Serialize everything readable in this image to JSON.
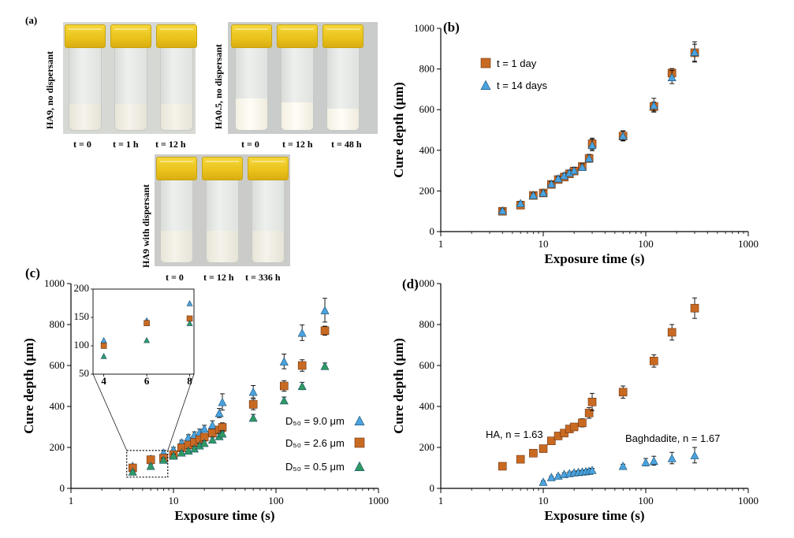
{
  "panel_a": {
    "label": "(a)",
    "groups": [
      {
        "name": "HA9, no dispersant",
        "captions": [
          "t = 0",
          "t = 1 h",
          "t = 12 h"
        ],
        "fill_levels": [
          0.32,
          0.32,
          0.32
        ]
      },
      {
        "name": "HA0.5, no dispersant",
        "captions": [
          "t = 0",
          "t = 12 h",
          "t = 48 h"
        ],
        "fill_levels": [
          0.38,
          0.34,
          0.26
        ]
      },
      {
        "name": "HA9 with dispersant",
        "captions": [
          "t = 0",
          "t = 12 h",
          "t = 336 h"
        ],
        "fill_levels": [
          0.38,
          0.38,
          0.38
        ]
      }
    ]
  },
  "colors": {
    "square": "#c96a23",
    "triangle_blue": "#4aa3df",
    "triangle_green": "#2e9a63"
  },
  "chart_data": [
    {
      "panel": "(b)",
      "type": "scatter",
      "xlabel": "Exposure time (s)",
      "ylabel": "Cure depth (μm)",
      "xscale": "log",
      "xlim": [
        1,
        1000
      ],
      "ylim": [
        0,
        1000
      ],
      "xticks": [
        "1",
        "10",
        "100",
        "1000"
      ],
      "yticks": [
        "0",
        "200",
        "400",
        "600",
        "800",
        "1000"
      ],
      "legend_position": "top-left",
      "series": [
        {
          "name": "t = 1 day",
          "marker": "square",
          "x": [
            4,
            6,
            8,
            10,
            12,
            14,
            16,
            18,
            20,
            24,
            28,
            30,
            60,
            120,
            180,
            300
          ],
          "y": [
            100,
            130,
            178,
            190,
            232,
            256,
            268,
            284,
            298,
            320,
            360,
            432,
            470,
            615,
            780,
            880
          ],
          "err": [
            8,
            8,
            10,
            10,
            10,
            10,
            12,
            12,
            14,
            16,
            18,
            28,
            24,
            22,
            22,
            42
          ]
        },
        {
          "name": "t = 14 days",
          "marker": "triangle",
          "x": [
            4,
            6,
            8,
            10,
            12,
            14,
            16,
            18,
            20,
            24,
            28,
            30,
            60,
            120,
            180,
            300
          ],
          "y": [
            104,
            140,
            180,
            192,
            236,
            262,
            276,
            290,
            302,
            318,
            362,
            426,
            472,
            622,
            760,
            884
          ],
          "err": [
            8,
            8,
            10,
            10,
            10,
            10,
            12,
            12,
            14,
            16,
            18,
            28,
            24,
            34,
            32,
            50
          ]
        }
      ]
    },
    {
      "panel": "(c)",
      "type": "scatter",
      "xlabel": "Exposure time (s)",
      "ylabel": "Cure depth (μm)",
      "xscale": "log",
      "xlim": [
        1,
        1000
      ],
      "ylim": [
        0,
        1000
      ],
      "xticks": [
        "1",
        "10",
        "100",
        "1000"
      ],
      "yticks": [
        "0",
        "200",
        "400",
        "600",
        "800",
        "1000"
      ],
      "legend_position": "bottom-right",
      "series": [
        {
          "name": "D₅₀ = 9.0 μm",
          "marker": "triangle_blue",
          "x": [
            4,
            6,
            8,
            10,
            12,
            14,
            16,
            18,
            20,
            24,
            28,
            30,
            60,
            120,
            180,
            300
          ],
          "y": [
            110,
            145,
            175,
            190,
            225,
            250,
            262,
            275,
            292,
            310,
            368,
            422,
            472,
            620,
            760,
            870
          ],
          "err": [
            8,
            8,
            10,
            10,
            10,
            12,
            14,
            14,
            16,
            20,
            22,
            40,
            30,
            36,
            38,
            58
          ]
        },
        {
          "name": "D₅₀ = 2.6 μm",
          "marker": "square",
          "x": [
            4,
            6,
            8,
            10,
            12,
            14,
            16,
            18,
            20,
            24,
            28,
            30,
            60,
            120,
            180,
            300
          ],
          "y": [
            100,
            140,
            148,
            165,
            198,
            212,
            225,
            238,
            250,
            270,
            285,
            298,
            410,
            500,
            600,
            770
          ],
          "err": [
            8,
            8,
            8,
            10,
            10,
            10,
            10,
            12,
            14,
            16,
            18,
            22,
            26,
            26,
            28,
            22
          ]
        },
        {
          "name": "D₅₀ = 0.5 μm",
          "marker": "triangle_green",
          "x": [
            4,
            6,
            8,
            10,
            12,
            14,
            16,
            18,
            20,
            24,
            28,
            30,
            60,
            120,
            180,
            300
          ],
          "y": [
            82,
            110,
            140,
            160,
            175,
            185,
            195,
            210,
            222,
            238,
            255,
            268,
            345,
            430,
            500,
            598
          ],
          "err": [
            6,
            6,
            8,
            8,
            8,
            8,
            10,
            10,
            10,
            12,
            14,
            14,
            16,
            16,
            18,
            14
          ]
        }
      ],
      "inset": {
        "xlim": [
          3.5,
          8.2
        ],
        "ylim": [
          50,
          200
        ],
        "xticks": [
          "4",
          "6",
          "8"
        ],
        "yticks": [
          "50",
          "100",
          "150",
          "200"
        ],
        "points": [
          {
            "series": "D₅₀ = 9.0 μm",
            "x": [
              4,
              6,
              8
            ],
            "y": [
              110,
              145,
              175
            ]
          },
          {
            "series": "D₅₀ = 2.6 μm",
            "x": [
              4,
              6,
              8
            ],
            "y": [
              100,
              140,
              148
            ]
          },
          {
            "series": "D₅₀ = 0.5 μm",
            "x": [
              4,
              6,
              8
            ],
            "y": [
              82,
              110,
              140
            ]
          }
        ]
      }
    },
    {
      "panel": "(d)",
      "type": "scatter",
      "xlabel": "Exposure time (s)",
      "ylabel": "Cure depth (μm)",
      "xscale": "log",
      "xlim": [
        1,
        1000
      ],
      "ylim": [
        0,
        1000
      ],
      "xticks": [
        "1",
        "10",
        "100",
        "1000"
      ],
      "yticks": [
        "0",
        "200",
        "400",
        "600",
        "800",
        "1000"
      ],
      "series": [
        {
          "name": "HA, n = 1.63",
          "marker": "square",
          "x": [
            4,
            6,
            8,
            10,
            12,
            14,
            16,
            18,
            20,
            24,
            28,
            30,
            60,
            120,
            180,
            300
          ],
          "y": [
            108,
            142,
            172,
            194,
            232,
            256,
            270,
            290,
            300,
            320,
            368,
            422,
            470,
            622,
            762,
            880
          ],
          "err": [
            6,
            8,
            8,
            8,
            10,
            12,
            12,
            14,
            16,
            20,
            26,
            42,
            30,
            30,
            38,
            50
          ]
        },
        {
          "name": "Baghdadite, n = 1.67",
          "marker": "triangle_blue",
          "x": [
            10,
            12,
            14,
            16,
            18,
            20,
            22,
            24,
            26,
            28,
            30,
            60,
            100,
            120,
            180,
            300
          ],
          "y": [
            32,
            55,
            62,
            70,
            74,
            78,
            80,
            82,
            84,
            86,
            90,
            110,
            128,
            135,
            148,
            162
          ],
          "err": [
            4,
            4,
            4,
            6,
            6,
            6,
            6,
            6,
            6,
            8,
            8,
            8,
            18,
            22,
            28,
            38
          ]
        }
      ]
    }
  ]
}
